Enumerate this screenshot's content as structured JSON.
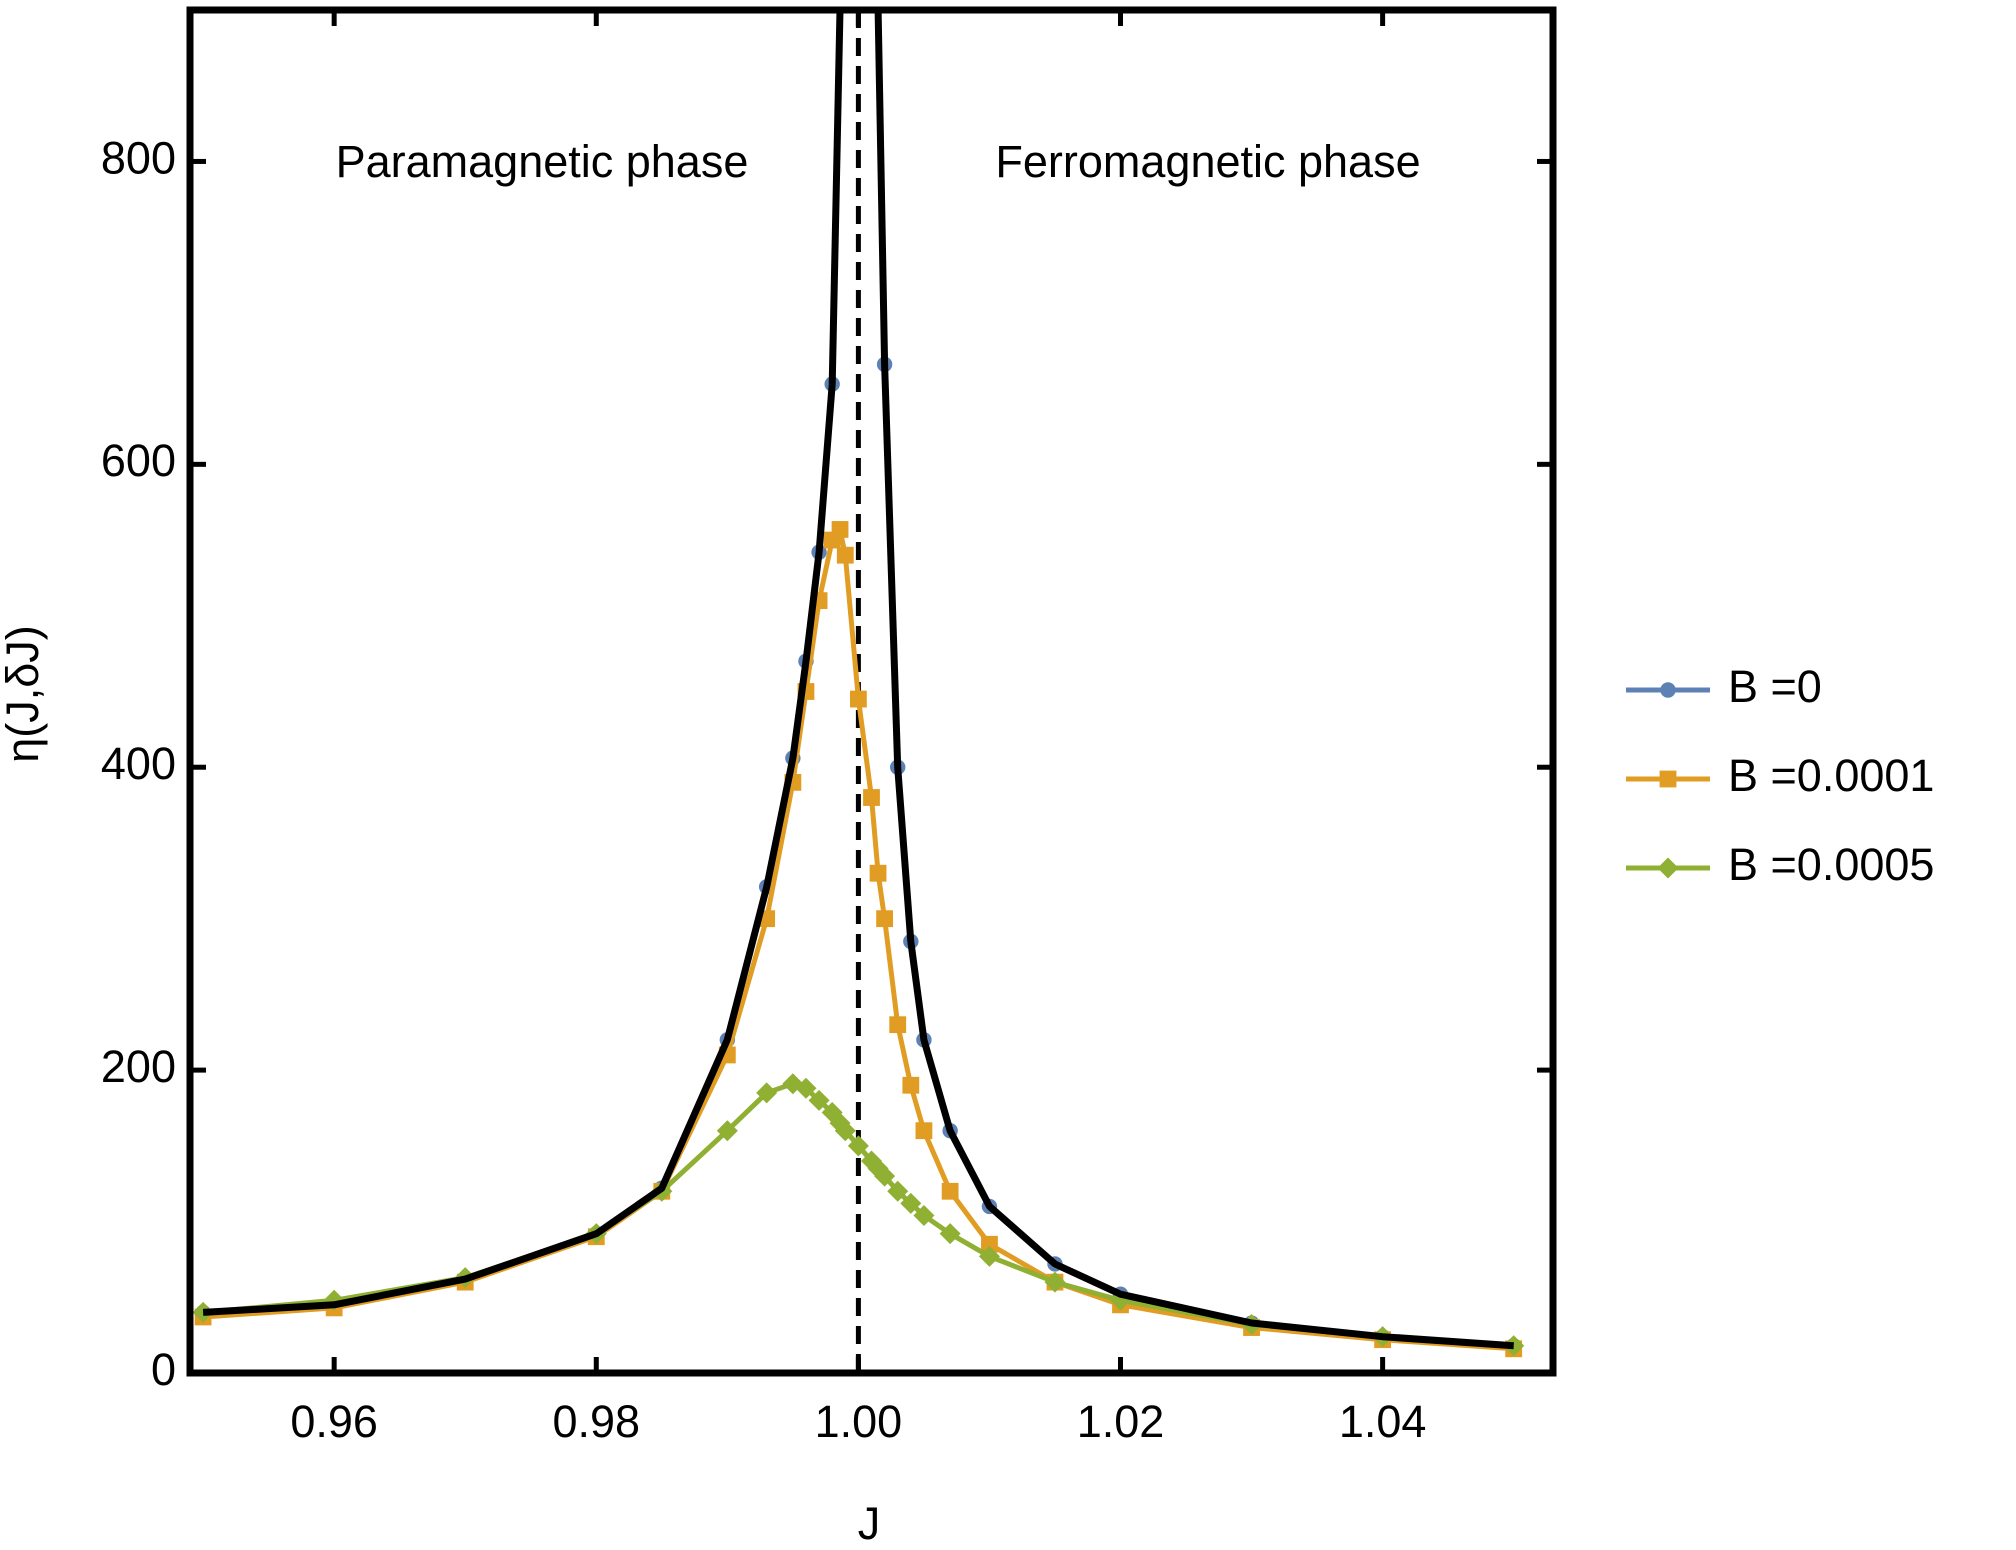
{
  "chart_data": {
    "type": "line",
    "x_label": "J",
    "y_label": "η(J,δJ)",
    "annotations": [
      "Paramagnetic phase",
      "Ferromagnetic phase"
    ],
    "x": [
      0.95,
      0.96,
      0.97,
      0.98,
      0.985,
      0.99,
      0.993,
      0.995,
      0.996,
      0.997,
      0.998,
      0.9986,
      0.999,
      1.0,
      1.001,
      1.0015,
      1.002,
      1.003,
      1.004,
      1.005,
      1.007,
      1.01,
      1.015,
      1.02,
      1.03,
      1.04,
      1.05
    ],
    "series": [
      {
        "name": "B =0",
        "color": "#5e81b5",
        "marker": "circle",
        "values": [
          40,
          45,
          62,
          92,
          122,
          220,
          321,
          406,
          470,
          542,
          653,
          null,
          null,
          null,
          null,
          null,
          666,
          400,
          285,
          220,
          160,
          110,
          72,
          52,
          33,
          24,
          18
        ]
      },
      {
        "name": "B =0.0001",
        "color": "#e19c24",
        "marker": "square",
        "values": [
          37,
          43,
          60,
          90,
          120,
          210,
          300,
          390,
          450,
          510,
          550,
          557,
          540,
          445,
          380,
          330,
          300,
          230,
          190,
          160,
          120,
          85,
          60,
          45,
          30,
          22,
          16
        ]
      },
      {
        "name": "B =0.0005",
        "color": "#8fb032",
        "marker": "diamond",
        "values": [
          40,
          48,
          63,
          92,
          120,
          160,
          185,
          191,
          188,
          180,
          172,
          165,
          160,
          150,
          140,
          135,
          130,
          120,
          112,
          104,
          92,
          77,
          60,
          48,
          32,
          24,
          18
        ]
      },
      {
        "color": "#000000",
        "marker": "none",
        "values": [
          40,
          45,
          62,
          92,
          122,
          220,
          321,
          406,
          470,
          542,
          653,
          900,
          null,
          null,
          null,
          900,
          666,
          400,
          285,
          220,
          160,
          110,
          72,
          52,
          33,
          24,
          18
        ]
      }
    ],
    "reference_lines": [
      {
        "x": 1,
        "style": "dashed",
        "color": "#000000"
      }
    ],
    "xlim": [
      0.949,
      1.053
    ],
    "ylim": [
      0,
      900
    ],
    "xticks": [
      0.96,
      0.98,
      {
        "value": 1,
        "label": "1.00"
      },
      1.02,
      1.04
    ],
    "yticks": [
      0,
      200,
      400,
      600,
      800
    ],
    "legend": "right"
  }
}
